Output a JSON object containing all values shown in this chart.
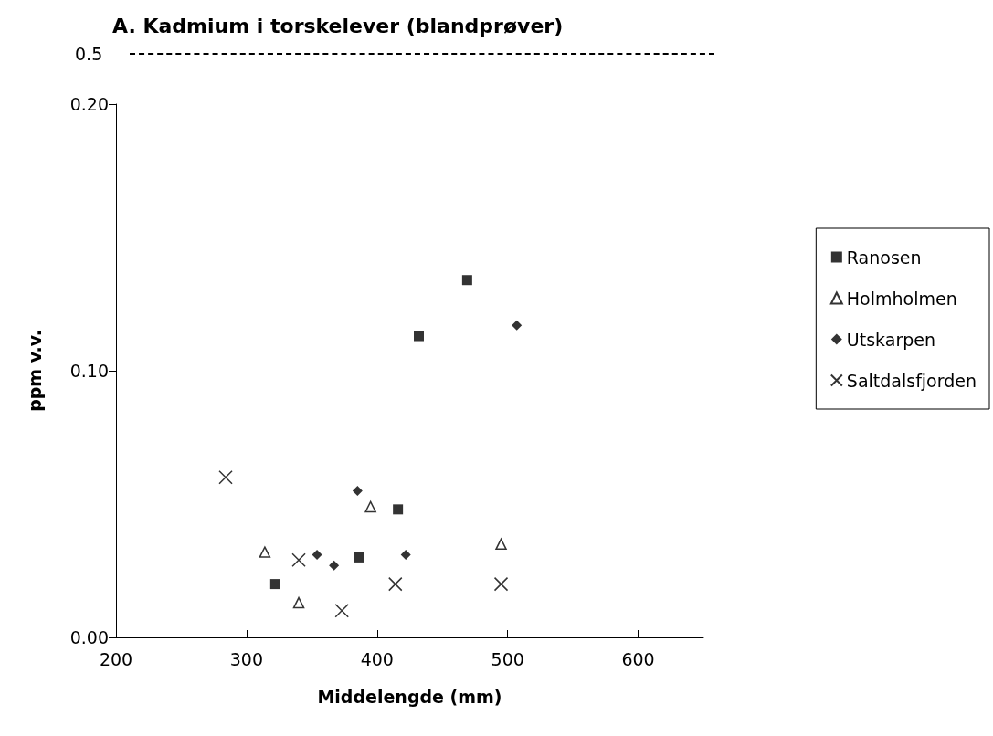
{
  "chart_data": {
    "type": "scatter",
    "title": "A. Kadmium i torskelever (blandprøver)",
    "xlabel": "Middelengde (mm)",
    "ylabel": "ppm v.v.",
    "annotations": [
      "0.5"
    ],
    "xlim": [
      200,
      650
    ],
    "xticks": [
      200,
      300,
      400,
      500,
      600
    ],
    "ylim": [
      0,
      0.2
    ],
    "yticks": [
      {
        "value": 0,
        "label": "0.00"
      },
      {
        "value": 0.1,
        "label": "0.10"
      },
      {
        "value": 0.2,
        "label": "0.20"
      }
    ],
    "grid": false,
    "legend": "right",
    "series": [
      {
        "name": "Ranosen",
        "color": "#000000",
        "marker": "square",
        "x": [
          469,
          432,
          416,
          386,
          322
        ],
        "values": [
          0.134,
          0.113,
          0.048,
          0.03,
          0.02
        ]
      },
      {
        "name": "Holmholmen",
        "color": "#000000",
        "marker": "triangle",
        "x": [
          314,
          340,
          395,
          495
        ],
        "values": [
          0.032,
          0.013,
          0.049,
          0.035
        ]
      },
      {
        "name": "Utskarpen",
        "color": "#000000",
        "marker": "diamond",
        "x": [
          385,
          354,
          367,
          422,
          507
        ],
        "values": [
          0.055,
          0.031,
          0.027,
          0.031,
          0.117
        ]
      },
      {
        "name": "Saltdalsfjorden",
        "color": "#000000",
        "marker": "cross",
        "x": [
          284,
          340,
          373,
          414,
          495
        ],
        "values": [
          0.06,
          0.029,
          0.01,
          0.02,
          0.02
        ]
      }
    ]
  }
}
